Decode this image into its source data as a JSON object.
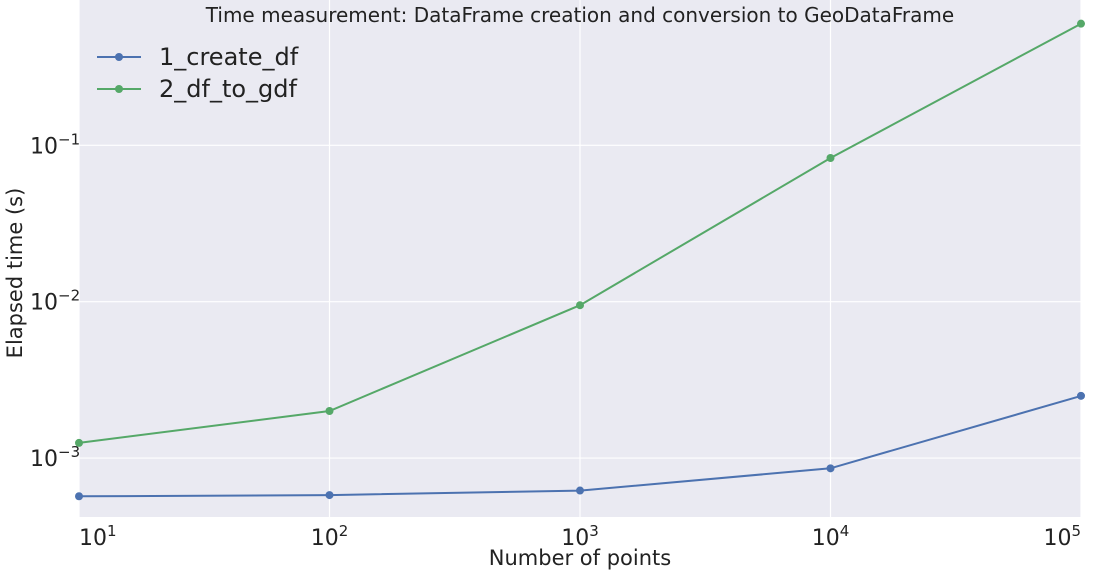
{
  "chart_data": {
    "type": "line",
    "title": "Time measurement: DataFrame creation and conversion to GeoDataFrame",
    "xlabel": "Number of points",
    "ylabel": "Elapsed time (s)",
    "x_scale": "log",
    "y_scale": "log",
    "x": [
      10,
      100,
      1000,
      10000,
      100000
    ],
    "xlim": [
      10,
      100000
    ],
    "ylim": [
      0.00042,
      0.85
    ],
    "x_ticks": [
      {
        "value": 10,
        "base": "10",
        "exp": "1"
      },
      {
        "value": 100,
        "base": "10",
        "exp": "2"
      },
      {
        "value": 1000,
        "base": "10",
        "exp": "3"
      },
      {
        "value": 10000,
        "base": "10",
        "exp": "4"
      },
      {
        "value": 100000,
        "base": "10",
        "exp": "5"
      }
    ],
    "y_ticks": [
      {
        "value": 0.001,
        "base": "10",
        "exp": "−3"
      },
      {
        "value": 0.01,
        "base": "10",
        "exp": "−2"
      },
      {
        "value": 0.1,
        "base": "10",
        "exp": "−1"
      }
    ],
    "series": [
      {
        "name": "1_create_df",
        "color": "#4c72b0",
        "values": [
          0.00057,
          0.00058,
          0.00062,
          0.00086,
          0.0025
        ]
      },
      {
        "name": "2_df_to_gdf",
        "color": "#55a868",
        "values": [
          0.00125,
          0.002,
          0.0095,
          0.083,
          0.6
        ]
      }
    ],
    "grid": true,
    "legend_position": "top-left",
    "background_color": "#eaeaf2",
    "grid_color": "#ffffff"
  }
}
